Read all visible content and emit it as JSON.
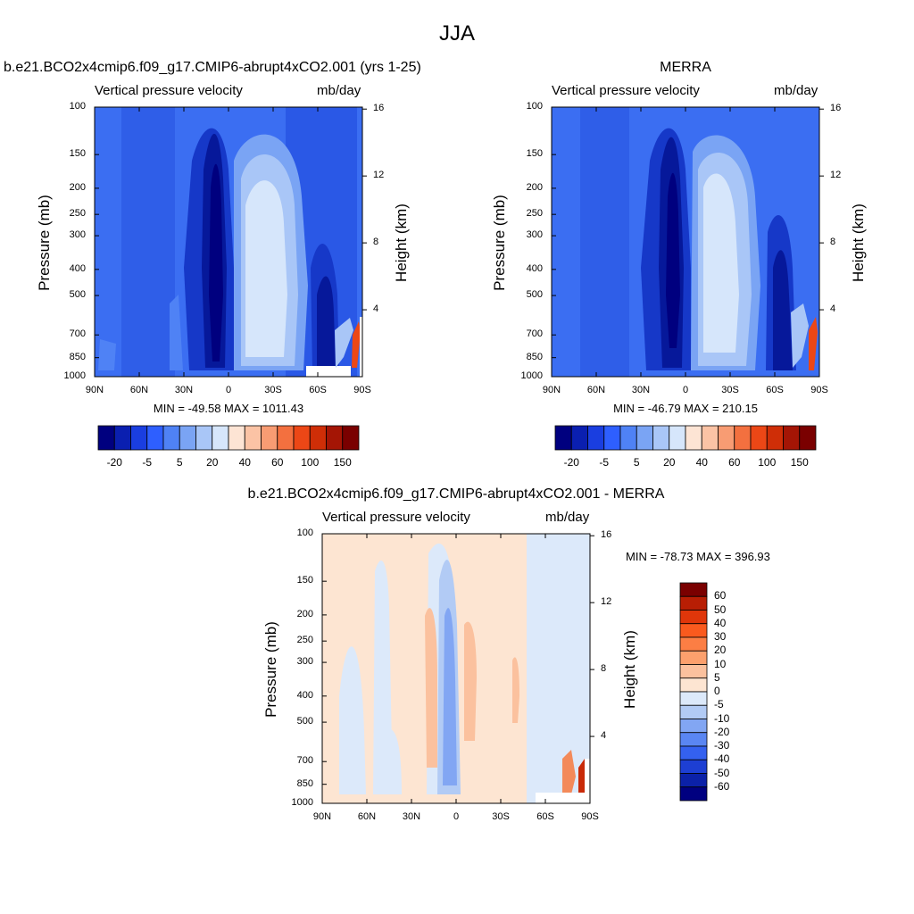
{
  "figure": {
    "season": "JJA"
  },
  "panels": {
    "model": {
      "title": "b.e21.BCO2x4cmip6.f09_g17.CMIP6-abrupt4xCO2.001 (yrs 1-25)",
      "variable": "Vertical pressure velocity",
      "units": "mb/day",
      "minmax": "MIN = -49.58  MAX = 1011.43"
    },
    "obs": {
      "title": "MERRA",
      "variable": "Vertical pressure velocity",
      "units": "mb/day",
      "minmax": "MIN = -46.79  MAX = 210.15"
    },
    "diff": {
      "title": "b.e21.BCO2x4cmip6.f09_g17.CMIP6-abrupt4xCO2.001 - MERRA",
      "variable": "Vertical pressure velocity",
      "units": "mb/day",
      "minmax": "MIN = -78.73  MAX = 396.93"
    }
  },
  "axes": {
    "ylabel": "Pressure (mb)",
    "y2label": "Height (km)",
    "pressure_ticks": [
      "100",
      "150",
      "200",
      "250",
      "300",
      "400",
      "500",
      "700",
      "850",
      "1000"
    ],
    "height_ticks": [
      "16",
      "12",
      "8",
      "4"
    ],
    "lat_ticks": [
      "90N",
      "60N",
      "30N",
      "0",
      "30S",
      "60S",
      "90S"
    ]
  },
  "colorbars": {
    "main_labels": [
      "-20",
      "-5",
      "5",
      "20",
      "40",
      "60",
      "100",
      "150"
    ],
    "main_colors": [
      "#00007f",
      "#0a1fb0",
      "#1a3ee0",
      "#2e5fff",
      "#4f82f5",
      "#7aa4f4",
      "#a9c6f7",
      "#d6e6fb",
      "#fde4d4",
      "#fbc3a5",
      "#f89c73",
      "#f3703f",
      "#ec4716",
      "#cf2e07",
      "#a41505",
      "#7a0000"
    ],
    "diff_labels": [
      "60",
      "50",
      "40",
      "30",
      "20",
      "10",
      "5",
      "0",
      "-5",
      "-10",
      "-20",
      "-30",
      "-40",
      "-50",
      "-60"
    ],
    "diff_colors": [
      "#7a0000",
      "#b81e04",
      "#e0360a",
      "#fa5a1e",
      "#fc7e44",
      "#fca06d",
      "#fbc19e",
      "#fde5d2",
      "#dce9fa",
      "#b2cbf5",
      "#82a6f3",
      "#5a86f2",
      "#3461ef",
      "#1d3fd3",
      "#0b21a8",
      "#000080"
    ]
  },
  "chart_data": [
    {
      "type": "heatmap",
      "title": "b.e21.BCO2x4cmip6.f09_g17.CMIP6-abrupt4xCO2.001 (yrs 1-25)",
      "subtitle": "Vertical pressure velocity",
      "units": "mb/day",
      "xlabel": "",
      "ylabel": "Pressure (mb)",
      "y2label": "Height (km)",
      "x_ticks": [
        "90N",
        "60N",
        "30N",
        "0",
        "30S",
        "60S",
        "90S"
      ],
      "y_ticks": [
        100,
        150,
        200,
        250,
        300,
        400,
        500,
        700,
        850,
        1000
      ],
      "y_scale": "log",
      "ylim": [
        1000,
        100
      ],
      "min": -49.58,
      "max": 1011.43
    },
    {
      "type": "heatmap",
      "title": "MERRA",
      "subtitle": "Vertical pressure velocity",
      "units": "mb/day",
      "xlabel": "",
      "ylabel": "Pressure (mb)",
      "y2label": "Height (km)",
      "x_ticks": [
        "90N",
        "60N",
        "30N",
        "0",
        "30S",
        "60S",
        "90S"
      ],
      "y_ticks": [
        100,
        150,
        200,
        250,
        300,
        400,
        500,
        700,
        850,
        1000
      ],
      "y_scale": "log",
      "ylim": [
        1000,
        100
      ],
      "min": -46.79,
      "max": 210.15
    },
    {
      "type": "heatmap",
      "title": "b.e21.BCO2x4cmip6.f09_g17.CMIP6-abrupt4xCO2.001 - MERRA",
      "subtitle": "Vertical pressure velocity",
      "units": "mb/day",
      "xlabel": "",
      "ylabel": "Pressure (mb)",
      "y2label": "Height (km)",
      "x_ticks": [
        "90N",
        "60N",
        "30N",
        "0",
        "30S",
        "60S",
        "90S"
      ],
      "y_ticks": [
        100,
        150,
        200,
        250,
        300,
        400,
        500,
        700,
        850,
        1000
      ],
      "y_scale": "log",
      "ylim": [
        1000,
        100
      ],
      "min": -78.73,
      "max": 396.93
    }
  ]
}
